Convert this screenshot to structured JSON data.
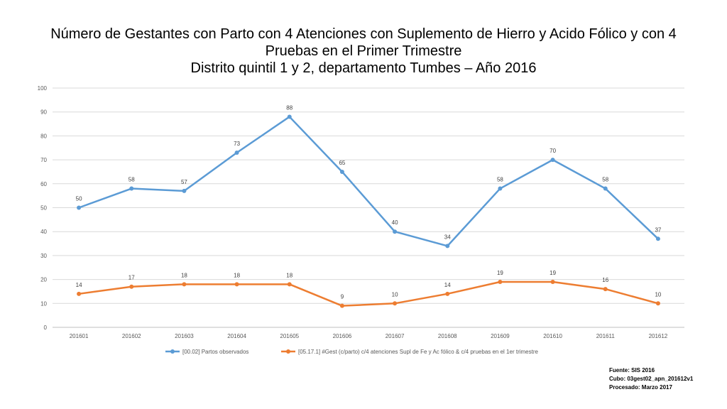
{
  "chart_data": {
    "type": "line",
    "title_lines": [
      "Número de Gestantes con Parto con 4 Atenciones con Suplemento de Hierro y Acido Fólico y con 4",
      "Pruebas en el Primer Trimestre",
      "Distrito quintil 1 y 2, departamento Tumbes – Año 2016"
    ],
    "categories": [
      "201601",
      "201602",
      "201603",
      "201604",
      "201605",
      "201606",
      "201607",
      "201608",
      "201609",
      "201610",
      "201611",
      "201612"
    ],
    "series": [
      {
        "name": "[00.02] Partos observados",
        "color": "#5B9BD5",
        "values": [
          50,
          58,
          57,
          73,
          88,
          65,
          40,
          34,
          58,
          70,
          58,
          37
        ]
      },
      {
        "name": "[05.17.1] #Gest (c/parto) c/4 atenciones Supl de Fe y Ac fólico & c/4 pruebas en el 1er trimestre",
        "color": "#ED7D31",
        "values": [
          14,
          17,
          18,
          18,
          18,
          9,
          10,
          14,
          19,
          19,
          16,
          10
        ]
      }
    ],
    "ylim": [
      0,
      100
    ],
    "yticks": [
      0,
      10,
      20,
      30,
      40,
      50,
      60,
      70,
      80,
      90,
      100
    ],
    "grid": true,
    "legend": "bottom"
  },
  "source": {
    "line1": "Fuente: SIS 2016",
    "line2": "Cubo: 03gest02_apn_201612v1",
    "line3": "Procesado: Marzo 2017"
  }
}
